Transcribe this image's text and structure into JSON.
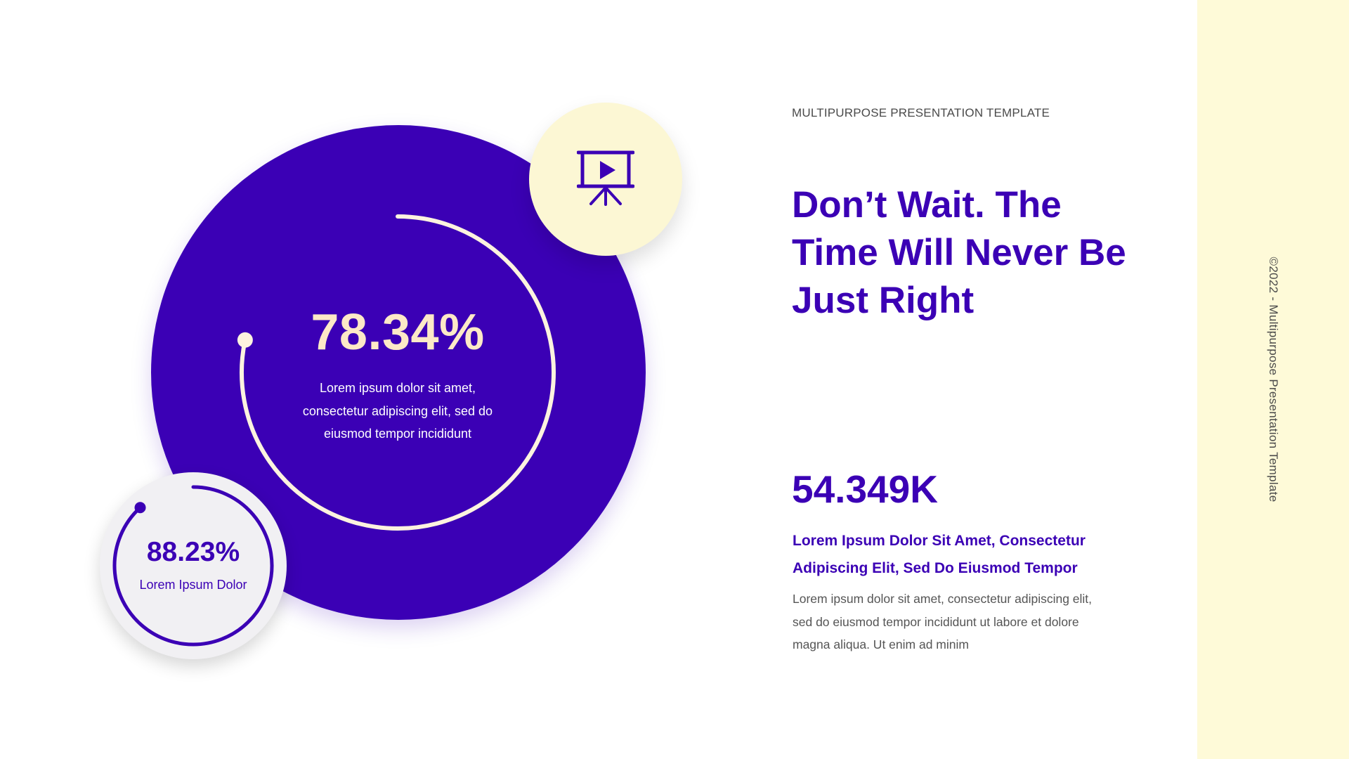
{
  "colors": {
    "primary": "#3b00b5",
    "cream": "#fefad8",
    "value_text": "#fde9c7",
    "small_circle_bg": "#f1f0f3"
  },
  "sidebar": {
    "copyright": "©2022 - Multipurpose Presentation Template"
  },
  "main_metric": {
    "value": "78.34%",
    "progress_fraction": 0.7834,
    "description": "Lorem ipsum dolor sit amet, consectetur adipiscing elit, sed do eiusmod tempor incididunt"
  },
  "small_metric": {
    "value": "88.23%",
    "progress_fraction": 0.8823,
    "label": "Lorem Ipsum Dolor"
  },
  "badge": {
    "icon": "presentation-board-play-icon"
  },
  "content": {
    "eyebrow": "MULTIPURPOSE PRESENTATION TEMPLATE",
    "headline": "Don’t Wait. The Time Will Never Be Just Right",
    "stat": "54.349K",
    "subheading": "Lorem Ipsum Dolor Sit Amet, Consectetur Adipiscing Elit, Sed Do Eiusmod Tempor",
    "body": "Lorem ipsum dolor sit amet, consectetur adipiscing elit, sed do eiusmod tempor incididunt ut labore et dolore magna aliqua. Ut enim ad minim"
  }
}
